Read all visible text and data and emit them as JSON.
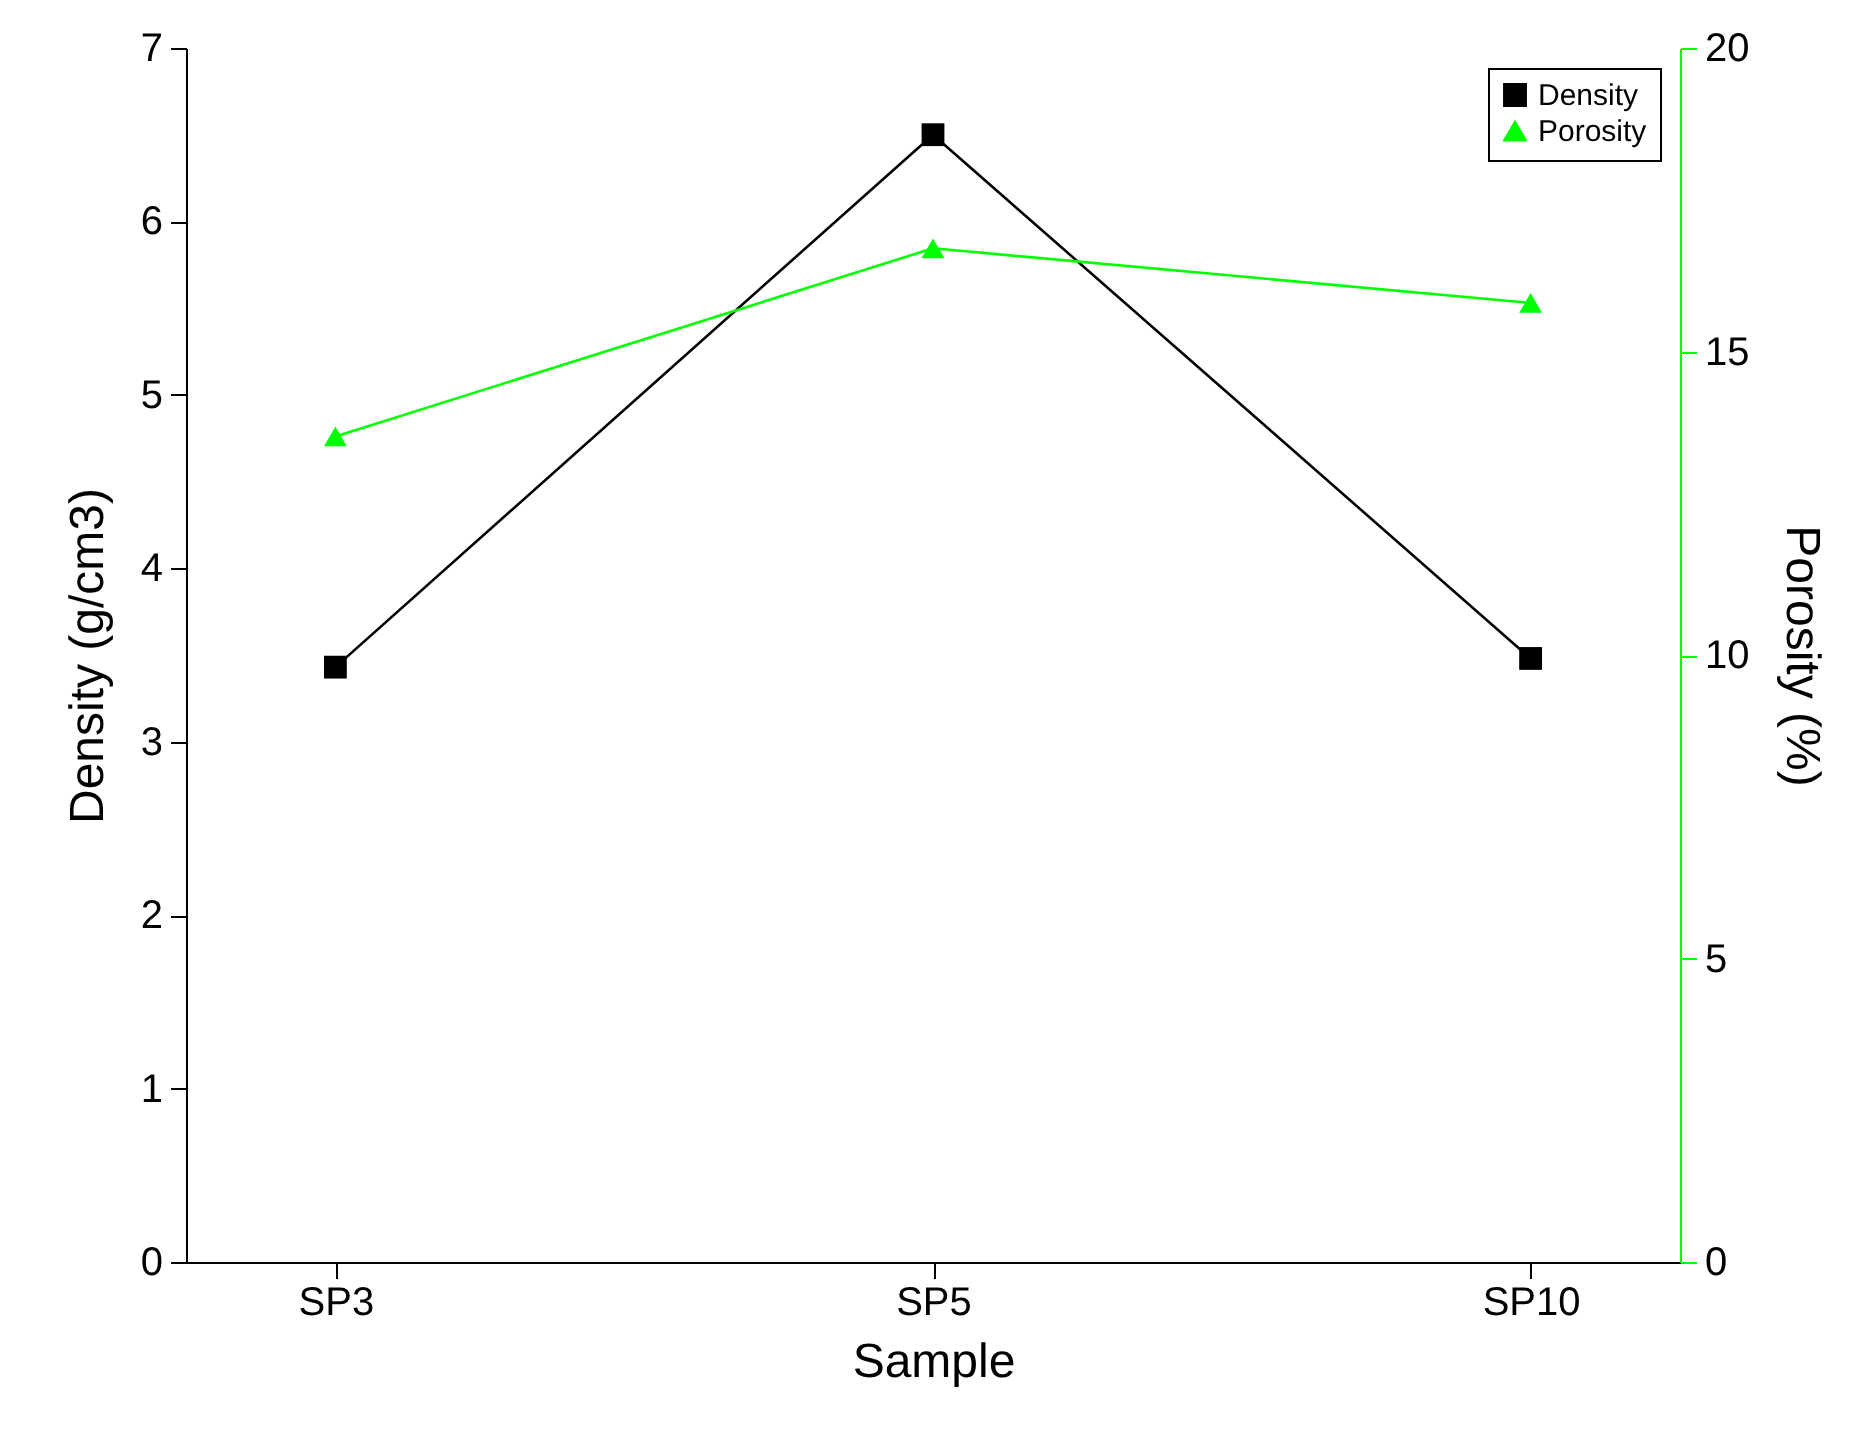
{
  "chart_data": {
    "type": "line",
    "xlabel": "Sample",
    "ylabel": "Density (g/cm3)",
    "y2label": "Porosity (%)",
    "categories": [
      "SP3",
      "SP5",
      "SP10"
    ],
    "ylim": [
      0,
      7
    ],
    "yticks": [
      0,
      1,
      2,
      3,
      4,
      5,
      6,
      7
    ],
    "y2lim": [
      0,
      20
    ],
    "y2ticks": [
      0,
      5,
      10,
      15,
      20
    ],
    "legend": "top right",
    "grid": false,
    "line_style": "solid",
    "series": [
      {
        "name": "Density",
        "color": "#000000",
        "marker": "square",
        "values": [
          3.43,
          6.5,
          3.48
        ]
      },
      {
        "name": "Porosity",
        "color": "#00ff00",
        "marker": "triangle",
        "axis": "y2",
        "values": [
          13.6,
          16.7,
          15.8
        ]
      }
    ]
  }
}
